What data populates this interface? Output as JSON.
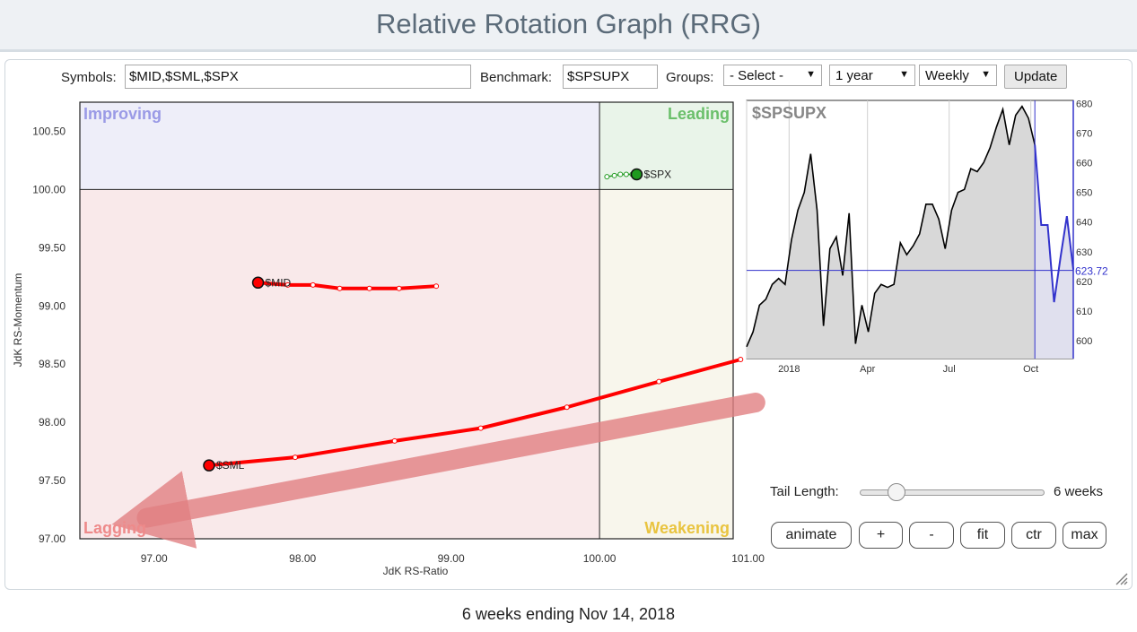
{
  "title": "Relative Rotation Graph (RRG)",
  "controls": {
    "symbols_label": "Symbols:",
    "symbols_value": "$MID,$SML,$SPX",
    "benchmark_label": "Benchmark:",
    "benchmark_value": "$SPSUPX",
    "groups_label": "Groups:",
    "groups_value": "- Select -",
    "period_value": "1 year",
    "frequency_value": "Weekly",
    "update_label": "Update"
  },
  "chart_data": [
    {
      "type": "scatter",
      "xlabel": "JdK RS-Ratio",
      "ylabel": "JdK RS-Momentum",
      "xlim": [
        96.5,
        100.0,
        100.9
      ],
      "xlim_note": "",
      "x_range": [
        96.5,
        100.9
      ],
      "ylim": [
        97.0,
        100.75
      ],
      "x_ticks": [
        "97.00",
        "98.00",
        "99.00",
        "100.00",
        "101.00"
      ],
      "x_tick_values": [
        97,
        98,
        99,
        100,
        101
      ],
      "y_ticks": [
        "97.00",
        "97.50",
        "98.00",
        "98.50",
        "99.00",
        "99.50",
        "100.00",
        "100.50"
      ],
      "y_tick_values": [
        97,
        97.5,
        98,
        98.5,
        99,
        99.5,
        100,
        100.5
      ],
      "center": [
        100,
        100
      ],
      "quadrants": {
        "improving": "Improving",
        "leading": "Leading",
        "lagging": "Lagging",
        "weakening": "Weakening"
      },
      "quadrant_colors": {
        "improving_bg": "#eeeef9",
        "leading_bg": "#e9f4e9",
        "lagging_bg": "#f9e9ea",
        "weakening_bg": "#f8f6ec",
        "improving_text": "#9a9ae6",
        "leading_text": "#6abf6a",
        "lagging_text": "#ee8a8a",
        "weakening_text": "#e9c440"
      },
      "series": [
        {
          "name": "$MID",
          "color": "#ff0000",
          "x": [
            98.9,
            98.65,
            98.45,
            98.25,
            98.07,
            97.9,
            97.7
          ],
          "y": [
            99.17,
            99.15,
            99.15,
            99.15,
            99.18,
            99.18,
            99.2
          ]
        },
        {
          "name": "$SML",
          "color": "#ff0000",
          "x": [
            100.95,
            100.4,
            99.78,
            99.2,
            98.62,
            97.95,
            97.37
          ],
          "y": [
            98.54,
            98.35,
            98.13,
            97.95,
            97.84,
            97.7,
            97.63
          ]
        },
        {
          "name": "$SPX",
          "color": "#1f9a1f",
          "x": [
            100.05,
            100.1,
            100.14,
            100.18,
            100.22,
            100.25
          ],
          "y": [
            100.11,
            100.12,
            100.13,
            100.13,
            100.13,
            100.13
          ]
        }
      ],
      "annotation": {
        "type": "arrow",
        "color": "#e17f82",
        "from": [
          101.05,
          98.17
        ],
        "to": [
          96.95,
          97.18
        ]
      }
    },
    {
      "type": "area",
      "title": "$SPSUPX",
      "x_ticks": [
        "2018",
        "Apr",
        "Jul",
        "Oct"
      ],
      "ylim": [
        594,
        681
      ],
      "y_ticks": [
        "600",
        "610",
        "620",
        "630",
        "640",
        "650",
        "660",
        "670",
        "680"
      ],
      "y_tick_values": [
        600,
        610,
        620,
        630,
        640,
        650,
        660,
        670,
        680
      ],
      "current_value": "623.72",
      "current_value_num": 623.72,
      "line_color": "#000000",
      "highlight_color": "#3333cc",
      "fill_color": "#d8d8d8",
      "values": [
        598,
        603,
        612,
        614,
        619,
        621,
        619,
        634,
        644,
        650,
        663,
        644,
        605,
        631,
        635,
        622,
        643,
        599,
        612,
        603,
        616,
        619,
        618,
        619,
        633,
        629,
        632,
        636,
        646,
        646,
        641,
        631,
        644,
        650,
        651,
        658,
        657,
        660,
        665,
        672,
        678,
        666,
        676,
        679,
        675,
        666
      ],
      "highlight_values": [
        666,
        639,
        639,
        613,
        628,
        642,
        624
      ]
    }
  ],
  "tail": {
    "label": "Tail Length:",
    "value": "6 weeks",
    "slider_fraction": 0.2
  },
  "buttons": {
    "animate": "animate",
    "plus": "+",
    "minus": "-",
    "fit": "fit",
    "ctr": "ctr",
    "max": "max"
  },
  "footer": "6 weeks ending Nov 14, 2018"
}
